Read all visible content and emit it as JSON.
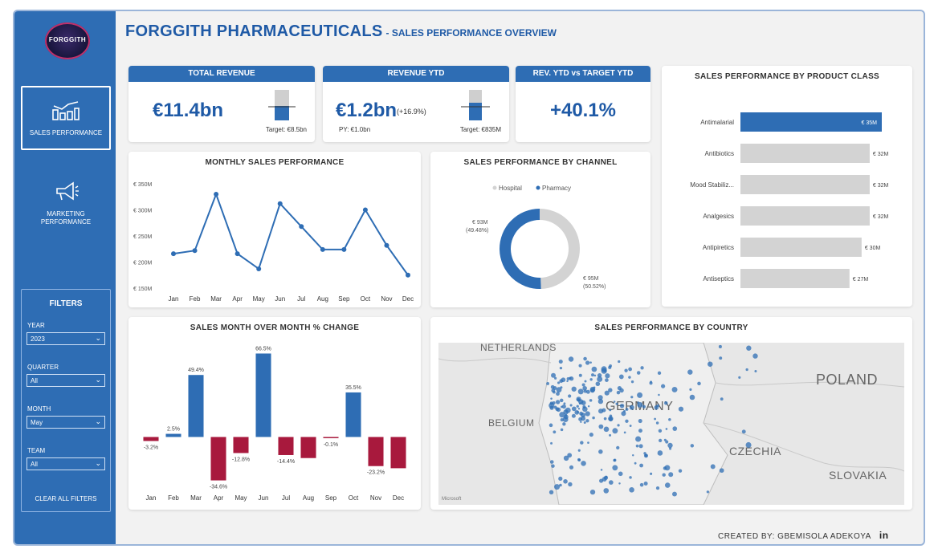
{
  "brand": {
    "logo_text": "FORGGITH",
    "title": "FORGGITH PHARMACEUTICALS",
    "subtitle": "- SALES PERFORMANCE OVERVIEW"
  },
  "sidebar": {
    "nav": [
      {
        "label": "SALES PERFORMANCE",
        "icon": "bar-chart-icon"
      },
      {
        "label": "MARKETING PERFORMANCE",
        "icon": "megaphone-icon"
      }
    ],
    "filters_title": "FILTERS",
    "filters": [
      {
        "label": "YEAR",
        "value": "2023"
      },
      {
        "label": "QUARTER",
        "value": "All"
      },
      {
        "label": "MONTH",
        "value": "May"
      },
      {
        "label": "TEAM",
        "value": "All"
      }
    ],
    "clear_label": "CLEAR ALL FILTERS"
  },
  "kpis": {
    "total_revenue": {
      "title": "TOTAL REVENUE",
      "value": "€11.4bn",
      "target": "Target: €8.5bn"
    },
    "revenue_ytd": {
      "title": "REVENUE YTD",
      "value": "€1.2bn",
      "change": "(+16.9%)",
      "py": "PY: €1.0bn",
      "target": "Target: €835M"
    },
    "rev_vs_target": {
      "title": "REV. YTD vs TARGET YTD",
      "value": "+40.1%"
    }
  },
  "colors": {
    "primary": "#2e6db4",
    "negative": "#a8193d",
    "neutral": "#d3d3d3"
  },
  "chart_data": [
    {
      "type": "line",
      "title": "MONTHLY SALES PERFORMANCE",
      "x": [
        "Jan",
        "Feb",
        "Mar",
        "Apr",
        "May",
        "Jun",
        "Jul",
        "Aug",
        "Sep",
        "Oct",
        "Nov",
        "Dec"
      ],
      "values": [
        216,
        222,
        330,
        216,
        187,
        312,
        268,
        224,
        224,
        300,
        232,
        175
      ],
      "ylim": [
        150,
        350
      ],
      "yticks": [
        "€ 150M",
        "€ 200M",
        "€ 250M",
        "€ 300M",
        "€ 350M"
      ]
    },
    {
      "type": "pie",
      "title": "SALES PERFORMANCE BY CHANNEL",
      "legend": [
        "Hospital",
        "Pharmacy"
      ],
      "slices": [
        {
          "name": "Hospital",
          "value": 93,
          "label": "€ 93M",
          "pct": "(49.48%)"
        },
        {
          "name": "Pharmacy",
          "value": 95,
          "label": "€ 95M",
          "pct": "(50.52%)"
        }
      ]
    },
    {
      "type": "bar",
      "title": "SALES PERFORMANCE BY PRODUCT CLASS",
      "categories": [
        "Antimalarial",
        "Antibiotics",
        "Mood Stabiliz...",
        "Analgesics",
        "Antipiretics",
        "Antiseptics"
      ],
      "values": [
        35,
        32,
        32,
        32,
        30,
        27
      ],
      "labels": [
        "€ 35M",
        "€ 32M",
        "€ 32M",
        "€ 32M",
        "€ 30M",
        "€ 27M"
      ],
      "xlim": [
        0,
        35
      ]
    },
    {
      "type": "bar",
      "title": "SALES MONTH OVER MONTH % CHANGE",
      "categories": [
        "Jan",
        "Feb",
        "Mar",
        "Apr",
        "May",
        "Jun",
        "Jul",
        "Aug",
        "Sep",
        "Oct",
        "Nov",
        "Dec"
      ],
      "values": [
        -3.2,
        2.5,
        49.4,
        -34.6,
        -12.8,
        66.5,
        -14.4,
        -16.8,
        -0.1,
        35.5,
        -23.2,
        -24.9
      ],
      "labels": [
        "-3.2%",
        "2.5%",
        "49.4%",
        "-34.6%",
        "-12.8%",
        "66.5%",
        "-14.4%",
        "",
        "-0.1%",
        "35.5%",
        "-23.2%",
        ""
      ],
      "ylim": [
        -40,
        70
      ]
    }
  ],
  "map": {
    "title": "SALES PERFORMANCE BY COUNTRY",
    "labels": [
      "NETHERLANDS",
      "GERMANY",
      "BELGIUM",
      "POLAND",
      "CZECHIA",
      "SLOVAKIA"
    ],
    "attribution": "Microsoft"
  },
  "footer": {
    "credit": "CREATED BY: GBEMISOLA ADEKOYA",
    "icon": "linkedin-icon",
    "icon_text": "in"
  }
}
